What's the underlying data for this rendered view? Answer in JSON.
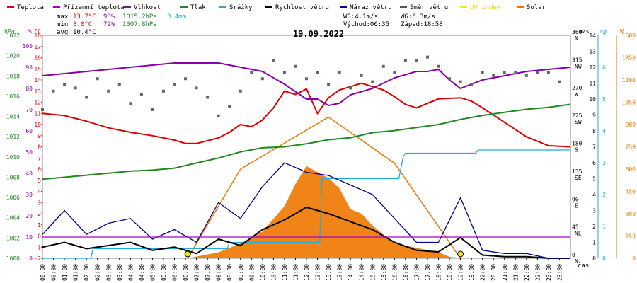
{
  "chart_data": {
    "type": "line",
    "title": "19.09.2022",
    "x_ticks": [
      "00:00",
      "00:30",
      "01:00",
      "01:30",
      "02:00",
      "02:30",
      "03:00",
      "03:30",
      "04:00",
      "04:30",
      "05:00",
      "05:30",
      "06:00",
      "06:30",
      "07:00",
      "07:30",
      "08:00",
      "08:30",
      "09:00",
      "09:30",
      "10:00",
      "10:30",
      "11:00",
      "11:30",
      "12:00",
      "12:30",
      "13:00",
      "13:30",
      "14:00",
      "14:30",
      "15:00",
      "15:30",
      "16:00",
      "16:30",
      "17:00",
      "17:30",
      "18:00",
      "18:30",
      "19:00",
      "19:30",
      "20:00",
      "20:30",
      "21:00",
      "21:30",
      "22:00",
      "22:30",
      "23:00",
      "23:30"
    ],
    "x_unit": "čas",
    "legend": [
      {
        "name": "Teplota",
        "color": "#dd0000"
      },
      {
        "name": "Přízemní teplota",
        "color": "#aa00cc"
      },
      {
        "name": "Vlhkost",
        "color": "#8800aa"
      },
      {
        "name": "Tlak",
        "color": "#228822"
      },
      {
        "name": "Srážky",
        "color": "#22aadd"
      },
      {
        "name": "Rychlost větru",
        "color": "#000000"
      },
      {
        "name": "Náraz větru",
        "color": "#000088"
      },
      {
        "name": "Směr větru",
        "color": "#555555"
      },
      {
        "name": "UV index",
        "color": "#eeee00"
      },
      {
        "name": "Solar",
        "color": "#ee7700"
      }
    ],
    "stats": {
      "max_label": "max",
      "min_label": "min",
      "avg_label": "avg",
      "max_temp": "13.7°C",
      "max_hum": "93%",
      "max_press": "1015.2hPa",
      "rain": "3.4mm",
      "min_temp": "8.0°C",
      "min_hum": "72%",
      "min_press": "1007.8hPa",
      "avg_temp": "10.4°C",
      "ws": "WS:4.1m/s",
      "wg": "WG:6.3m/s",
      "sunrise": "Východ:06:35",
      "sunset": "Západ:18:58"
    },
    "axes": {
      "pressure": {
        "unit": "hPa",
        "ticks": [
          1000,
          1002,
          1004,
          1006,
          1008,
          1010,
          1012,
          1014,
          1016,
          1018,
          1020,
          1022
        ],
        "range": [
          1000,
          1022
        ]
      },
      "humidity": {
        "unit": "%",
        "ticks": [
          0,
          10,
          20,
          30,
          40,
          50,
          60,
          70,
          80,
          90,
          100
        ],
        "range": [
          0,
          105
        ]
      },
      "temperature": {
        "unit": "°C",
        "ticks": [
          -2,
          -1,
          0,
          1,
          2,
          3,
          4,
          5,
          6,
          7,
          8,
          9,
          10,
          11,
          12,
          13,
          14,
          15,
          16,
          17,
          18
        ],
        "range": [
          -2,
          18
        ]
      },
      "wind": {
        "unit": "m/s",
        "ticks": [
          0,
          1,
          2,
          3,
          4,
          5,
          6,
          7,
          8,
          9,
          10,
          11,
          12,
          13,
          14
        ],
        "range": [
          0,
          14
        ]
      },
      "rain": {
        "unit": "mm",
        "ticks": [
          0,
          1,
          2,
          3,
          4,
          5,
          6,
          7
        ],
        "range": [
          0,
          7
        ]
      },
      "solar": {
        "unit": "W",
        "ticks": [
          0,
          150,
          300,
          450,
          600,
          750,
          900,
          1050,
          1200,
          1350,
          1500
        ],
        "range": [
          0,
          1500
        ]
      },
      "direction": {
        "ticks": [
          {
            "deg": "0",
            "dir": "N"
          },
          {
            "deg": "45",
            "dir": "NE"
          },
          {
            "deg": "90",
            "dir": "E"
          },
          {
            "deg": "135",
            "dir": "SE"
          },
          {
            "deg": "180",
            "dir": "S"
          },
          {
            "deg": "225",
            "dir": "SW"
          },
          {
            "deg": "270",
            "dir": "W"
          },
          {
            "deg": "315",
            "dir": "NW"
          },
          {
            "deg": "360",
            "dir": "N"
          }
        ]
      }
    },
    "series": [
      {
        "name": "Teplota",
        "axis": "temperature",
        "color": "#dd0000",
        "x": [
          0,
          1,
          2,
          3,
          4,
          5,
          6,
          6.5,
          7,
          8,
          8.5,
          9,
          9.5,
          10,
          10.5,
          11,
          11.5,
          12,
          12.5,
          13,
          13.5,
          14,
          14.5,
          15,
          15.5,
          16,
          16.5,
          17,
          18,
          19,
          19.5,
          20,
          21,
          22,
          23,
          24
        ],
        "y": [
          11,
          10.8,
          10.3,
          9.7,
          9.3,
          9.0,
          8.6,
          8.3,
          8.3,
          8.8,
          9.3,
          10.0,
          9.8,
          10.4,
          11.5,
          13.0,
          12.7,
          13.2,
          11.0,
          12.4,
          13.1,
          13.4,
          13.7,
          13.4,
          13.1,
          12.5,
          11.8,
          11.5,
          12.3,
          12.4,
          12.1,
          11.5,
          10.2,
          8.9,
          8.1,
          8.0
        ]
      },
      {
        "name": "Vlhkost",
        "axis": "humidity",
        "color": "#8800aa",
        "x": [
          0,
          1,
          2,
          3,
          4,
          5,
          6,
          7,
          8,
          9,
          10,
          11,
          12,
          12.5,
          13,
          13.5,
          14,
          15,
          16,
          17,
          17.5,
          18,
          18.5,
          19,
          20,
          21,
          22,
          23,
          24
        ],
        "y": [
          86,
          87,
          88,
          89,
          90,
          91,
          92,
          92,
          92,
          90,
          88,
          82,
          75,
          75,
          72,
          73,
          77,
          80,
          85,
          88,
          88,
          89,
          84,
          80,
          84,
          86,
          88,
          89,
          90
        ]
      },
      {
        "name": "Tlak",
        "axis": "pressure",
        "color": "#228822",
        "x": [
          0,
          1,
          2,
          3,
          4,
          5,
          6,
          7,
          8,
          9,
          10,
          11,
          12,
          13,
          14,
          15,
          16,
          17,
          18,
          19,
          20,
          21,
          22,
          23,
          24
        ],
        "y": [
          1007.8,
          1008,
          1008.2,
          1008.4,
          1008.6,
          1008.7,
          1008.9,
          1009.4,
          1009.9,
          1010.5,
          1010.9,
          1011.0,
          1011.3,
          1011.7,
          1011.9,
          1012.4,
          1012.6,
          1012.9,
          1013.2,
          1013.7,
          1014.1,
          1014.4,
          1014.7,
          1014.9,
          1015.2
        ]
      },
      {
        "name": "Srážky",
        "axis": "rain",
        "color": "#22aadd",
        "x": [
          0,
          2.2,
          2.3,
          8.4,
          8.5,
          12.6,
          12.7,
          16.2,
          16.4,
          16.5,
          19.7,
          19.8,
          24
        ],
        "y": [
          0,
          0,
          0.3,
          0.3,
          0.5,
          0.5,
          2.5,
          2.5,
          3.2,
          3.3,
          3.3,
          3.4,
          3.4
        ]
      },
      {
        "name": "Rychlost větru",
        "axis": "wind",
        "color": "#000000",
        "x": [
          0,
          1,
          2,
          3,
          4,
          5,
          6,
          7,
          8,
          9,
          10,
          11,
          12,
          13,
          14,
          15,
          16,
          17,
          18,
          19,
          20,
          21,
          22,
          23,
          24
        ],
        "y": [
          0.7,
          1.0,
          0.6,
          0.8,
          1.0,
          0.5,
          0.7,
          0.3,
          1.2,
          0.8,
          1.8,
          2.4,
          3.2,
          2.8,
          2.3,
          1.8,
          1.0,
          0.5,
          0.4,
          1.3,
          0.2,
          0.1,
          0.1,
          0,
          0
        ]
      },
      {
        "name": "Náraz větru",
        "axis": "wind",
        "color": "#000088",
        "x": [
          0,
          1,
          2,
          3,
          4,
          5,
          6,
          7,
          8,
          9,
          10,
          11,
          12,
          13,
          14,
          15,
          16,
          17,
          18,
          19,
          20,
          21,
          22,
          23,
          24
        ],
        "y": [
          1.5,
          3.0,
          1.5,
          2.2,
          2.5,
          1.2,
          1.8,
          1.0,
          3.5,
          2.5,
          4.5,
          6.0,
          5.4,
          5.2,
          4.6,
          4.0,
          2.5,
          1.0,
          1.0,
          3.8,
          0.5,
          0.3,
          0.3,
          0,
          0
        ]
      },
      {
        "name": "Přízemní teplota",
        "axis": "humidity",
        "color": "#aa00cc",
        "x": [
          0,
          24
        ],
        "y": [
          10,
          10
        ]
      },
      {
        "name": "Solar",
        "axis": "solar",
        "color": "#ee7700",
        "x": [
          6.6,
          8,
          9,
          10,
          11,
          11.5,
          12,
          12.5,
          13,
          13.5,
          14,
          14.5,
          15,
          15.5,
          16,
          17,
          18,
          18.5,
          19
        ],
        "y": [
          0,
          40,
          100,
          180,
          350,
          500,
          620,
          580,
          540,
          470,
          330,
          300,
          220,
          160,
          100,
          70,
          40,
          10,
          0
        ]
      }
    ],
    "solar_clear_sky": {
      "x": [
        6.6,
        9,
        13,
        16,
        19
      ],
      "y": [
        0,
        600,
        950,
        640,
        0
      ]
    },
    "wind_direction": {
      "x": [
        0,
        0.5,
        1,
        1.5,
        2,
        2.5,
        3,
        3.5,
        4,
        4.5,
        5,
        5.5,
        6,
        6.5,
        7,
        7.5,
        8,
        8.5,
        9,
        9.5,
        10,
        10.5,
        11,
        11.5,
        12,
        12.5,
        13,
        13.5,
        14,
        14.5,
        15,
        15.5,
        16,
        16.5,
        17,
        17.5,
        18,
        18.5,
        19,
        19.5,
        20,
        20.5,
        21,
        21.5,
        22,
        22.5,
        23,
        23.5
      ],
      "y": [
        240,
        270,
        280,
        275,
        260,
        290,
        270,
        280,
        250,
        265,
        240,
        270,
        280,
        290,
        275,
        260,
        230,
        245,
        270,
        300,
        290,
        320,
        300,
        310,
        290,
        300,
        280,
        300,
        275,
        295,
        285,
        310,
        300,
        320,
        320,
        325,
        310,
        290,
        285,
        280,
        300,
        295,
        300,
        300,
        295,
        300,
        300,
        285
      ]
    }
  }
}
